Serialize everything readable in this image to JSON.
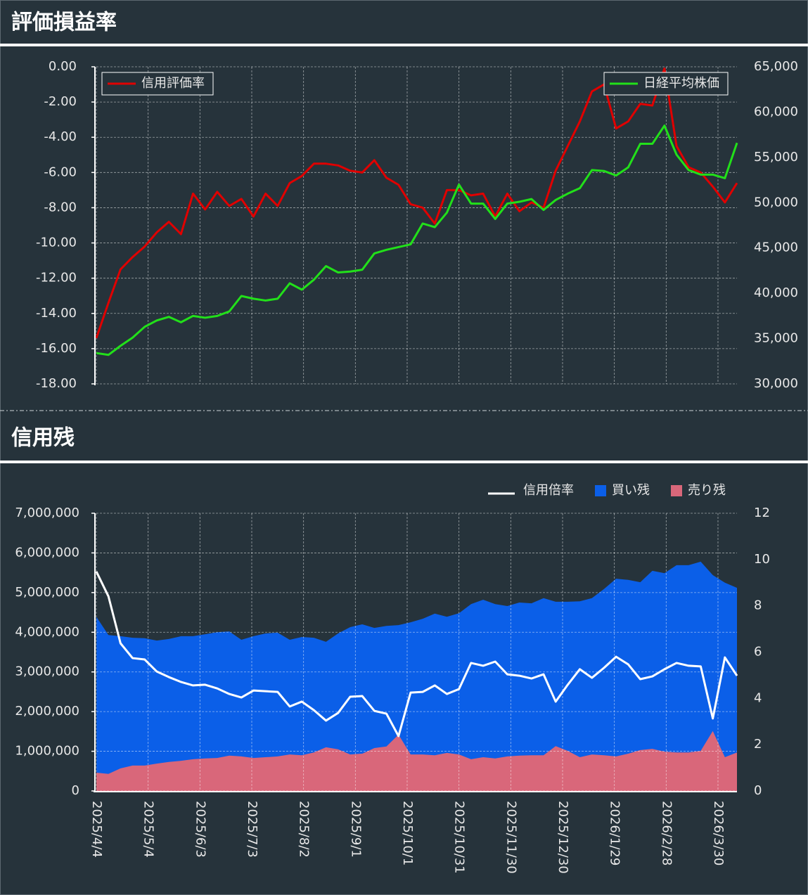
{
  "chart_data": [
    {
      "type": "line",
      "title": "評価損益率",
      "x": [
        "2025/4/4",
        "2025/4/11",
        "2025/4/18",
        "2025/4/25",
        "2025/5/2",
        "2025/5/9",
        "2025/5/16",
        "2025/5/23",
        "2025/5/30",
        "2025/6/6",
        "2025/6/13",
        "2025/6/20",
        "2025/6/27",
        "2025/7/4",
        "2025/7/11",
        "2025/7/18",
        "2025/7/25",
        "2025/8/1",
        "2025/8/8",
        "2025/8/15",
        "2025/8/22",
        "2025/8/29",
        "2025/9/5",
        "2025/9/12",
        "2025/9/19",
        "2025/9/26",
        "2025/10/3",
        "2025/10/10",
        "2025/10/17",
        "2025/10/24",
        "2025/10/31",
        "2025/11/7",
        "2025/11/14",
        "2025/11/21",
        "2025/11/28",
        "2025/12/5",
        "2025/12/12",
        "2025/12/19",
        "2025/12/26",
        "2026/1/2",
        "2026/1/9",
        "2026/1/16",
        "2026/1/23",
        "2026/1/30",
        "2026/2/6",
        "2026/2/13",
        "2026/2/20",
        "2026/2/27",
        "2026/3/6",
        "2026/3/13",
        "2026/3/20",
        "2026/3/27",
        "2026/4/3",
        "2026/4/10"
      ],
      "xlim": [
        "2025/4/4",
        "2026/4/10"
      ],
      "xticks": [
        "2025/4/4",
        "2025/5/4",
        "2025/6/3",
        "2025/7/3",
        "2025/8/2",
        "2025/9/1",
        "2025/10/1",
        "2025/10/31",
        "2025/11/30",
        "2025/12/30",
        "2026/1/29",
        "2026/2/28",
        "2026/3/30"
      ],
      "show_xtick_labels": false,
      "ylim": [
        -18,
        0
      ],
      "yticks": [
        {
          "value": -18,
          "label": "-18.00"
        },
        {
          "value": -16,
          "label": "-16.00"
        },
        {
          "value": -14,
          "label": "-14.00"
        },
        {
          "value": -12,
          "label": "-12.00"
        },
        {
          "value": -10,
          "label": "-10.00"
        },
        {
          "value": -8,
          "label": "-8.00"
        },
        {
          "value": -6,
          "label": "-6.00"
        },
        {
          "value": -4,
          "label": "-4.00"
        },
        {
          "value": -2,
          "label": "-2.00"
        },
        {
          "value": 0,
          "label": "0.00"
        }
      ],
      "y2lim": [
        30000,
        65000
      ],
      "y2ticks": [
        {
          "value": 30000,
          "label": "30,000"
        },
        {
          "value": 35000,
          "label": "35,000"
        },
        {
          "value": 40000,
          "label": "40,000"
        },
        {
          "value": 45000,
          "label": "45,000"
        },
        {
          "value": 50000,
          "label": "50,000"
        },
        {
          "value": 55000,
          "label": "55,000"
        },
        {
          "value": 60000,
          "label": "60,000"
        },
        {
          "value": 65000,
          "label": "65,000"
        }
      ],
      "grid": true,
      "series": [
        {
          "name": "信用評価率",
          "color": "#e00000",
          "legend": "upper left",
          "values": [
            -15.4,
            -13.4,
            -11.5,
            -10.8,
            -10.2,
            -9.4,
            -8.8,
            -9.5,
            -7.2,
            -8.1,
            -7.1,
            -7.9,
            -7.5,
            -8.5,
            -7.2,
            -7.9,
            -6.6,
            -6.2,
            -5.5,
            -5.5,
            -5.6,
            -5.9,
            -6.0,
            -5.3,
            -6.3,
            -6.7,
            -7.8,
            -8.0,
            -8.9,
            -7.0,
            -7.0,
            -7.3,
            -7.2,
            -8.5,
            -7.2,
            -8.2,
            -7.7,
            -8.0,
            -5.9,
            -4.5,
            -3.1,
            -1.4,
            -1.0,
            -3.5,
            -3.1,
            -2.1,
            -2.2,
            -0.1,
            -4.5,
            -5.7,
            -6.0,
            -6.8,
            -7.7,
            -6.6
          ]
        },
        {
          "name": "日経平均株価",
          "color": "#22e01a",
          "axis": "y2",
          "legend": "upper right",
          "values": [
            33400,
            33200,
            34200,
            35100,
            36300,
            37000,
            37400,
            36800,
            37500,
            37300,
            37500,
            38000,
            39700,
            39400,
            39200,
            39400,
            41100,
            40400,
            41500,
            43000,
            42300,
            42400,
            42600,
            44400,
            44800,
            45100,
            45400,
            47700,
            47300,
            48900,
            52000,
            49900,
            49900,
            48200,
            49900,
            50100,
            50400,
            49200,
            50300,
            51000,
            51600,
            53600,
            53500,
            53000,
            53900,
            56500,
            56500,
            58500,
            55300,
            53600,
            53100,
            53100,
            52700,
            56600
          ]
        }
      ]
    },
    {
      "type": "line",
      "title": "信用残",
      "x": [
        "2025/4/4",
        "2025/4/11",
        "2025/4/18",
        "2025/4/25",
        "2025/5/2",
        "2025/5/9",
        "2025/5/16",
        "2025/5/23",
        "2025/5/30",
        "2025/6/6",
        "2025/6/13",
        "2025/6/20",
        "2025/6/27",
        "2025/7/4",
        "2025/7/11",
        "2025/7/18",
        "2025/7/25",
        "2025/8/1",
        "2025/8/8",
        "2025/8/15",
        "2025/8/22",
        "2025/8/29",
        "2025/9/5",
        "2025/9/12",
        "2025/9/19",
        "2025/9/26",
        "2025/10/3",
        "2025/10/10",
        "2025/10/17",
        "2025/10/24",
        "2025/10/31",
        "2025/11/7",
        "2025/11/14",
        "2025/11/21",
        "2025/11/28",
        "2025/12/5",
        "2025/12/12",
        "2025/12/19",
        "2025/12/26",
        "2026/1/2",
        "2026/1/9",
        "2026/1/16",
        "2026/1/23",
        "2026/1/30",
        "2026/2/6",
        "2026/2/13",
        "2026/2/20",
        "2026/2/27",
        "2026/3/6",
        "2026/3/13",
        "2026/3/20",
        "2026/3/27",
        "2026/4/3",
        "2026/4/10"
      ],
      "xlim": [
        "2025/4/4",
        "2026/4/10"
      ],
      "xticks": [
        "2025/4/4",
        "2025/5/4",
        "2025/6/3",
        "2025/7/3",
        "2025/8/2",
        "2025/9/1",
        "2025/10/1",
        "2025/10/31",
        "2025/11/30",
        "2025/12/30",
        "2026/1/29",
        "2026/2/28",
        "2026/3/30"
      ],
      "show_xtick_labels": true,
      "ylim": [
        0,
        7000000
      ],
      "yticks": [
        0,
        {
          "value": 1000000,
          "label": "1,000,000"
        },
        {
          "value": 2000000,
          "label": "2,000,000"
        },
        {
          "value": 3000000,
          "label": "3,000,000"
        },
        {
          "value": 4000000,
          "label": "4,000,000"
        },
        {
          "value": 5000000,
          "label": "5,000,000"
        },
        {
          "value": 6000000,
          "label": "6,000,000"
        },
        {
          "value": 7000000,
          "label": "7,000,000"
        }
      ],
      "y2lim": [
        0,
        12
      ],
      "y2ticks": [
        0,
        2,
        4,
        6,
        8,
        10,
        12
      ],
      "grid": true,
      "legend": "top right",
      "series": [
        {
          "name": "信用倍率",
          "color": "#ffffff",
          "axis": "y2",
          "style": "line",
          "values": [
            9.48,
            8.41,
            6.38,
            5.74,
            5.68,
            5.16,
            4.92,
            4.71,
            4.56,
            4.59,
            4.43,
            4.19,
            4.04,
            4.34,
            4.31,
            4.28,
            3.65,
            3.86,
            3.49,
            3.04,
            3.37,
            4.07,
            4.1,
            3.46,
            3.34,
            2.37,
            4.25,
            4.28,
            4.56,
            4.19,
            4.4,
            5.53,
            5.41,
            5.59,
            5.04,
            4.98,
            4.86,
            5.04,
            3.86,
            4.59,
            5.26,
            4.89,
            5.32,
            5.8,
            5.47,
            4.83,
            4.95,
            5.26,
            5.53,
            5.41,
            5.38,
            3.13,
            5.77,
            4.98
          ]
        },
        {
          "name": "買い残",
          "color": "#0b5fe8",
          "style": "area",
          "values": [
            4390000,
            3930000,
            3900000,
            3860000,
            3850000,
            3790000,
            3830000,
            3900000,
            3900000,
            3950000,
            4000000,
            4020000,
            3810000,
            3900000,
            3970000,
            3990000,
            3810000,
            3880000,
            3860000,
            3760000,
            3970000,
            4130000,
            4200000,
            4110000,
            4160000,
            4180000,
            4250000,
            4340000,
            4470000,
            4390000,
            4480000,
            4710000,
            4820000,
            4710000,
            4660000,
            4750000,
            4730000,
            4860000,
            4770000,
            4770000,
            4780000,
            4860000,
            5090000,
            5350000,
            5320000,
            5260000,
            5550000,
            5490000,
            5690000,
            5690000,
            5780000,
            5440000,
            5250000,
            5120000
          ]
        },
        {
          "name": "売り残",
          "color": "#d9677a",
          "style": "area",
          "values": [
            460000,
            430000,
            570000,
            640000,
            640000,
            690000,
            730000,
            760000,
            800000,
            820000,
            830000,
            890000,
            870000,
            830000,
            850000,
            870000,
            920000,
            900000,
            970000,
            1100000,
            1050000,
            920000,
            940000,
            1080000,
            1120000,
            1420000,
            920000,
            920000,
            900000,
            960000,
            920000,
            800000,
            850000,
            820000,
            870000,
            890000,
            900000,
            900000,
            1130000,
            1010000,
            850000,
            920000,
            900000,
            870000,
            940000,
            1030000,
            1060000,
            990000,
            970000,
            970000,
            1010000,
            1510000,
            850000,
            970000
          ]
        }
      ]
    }
  ]
}
